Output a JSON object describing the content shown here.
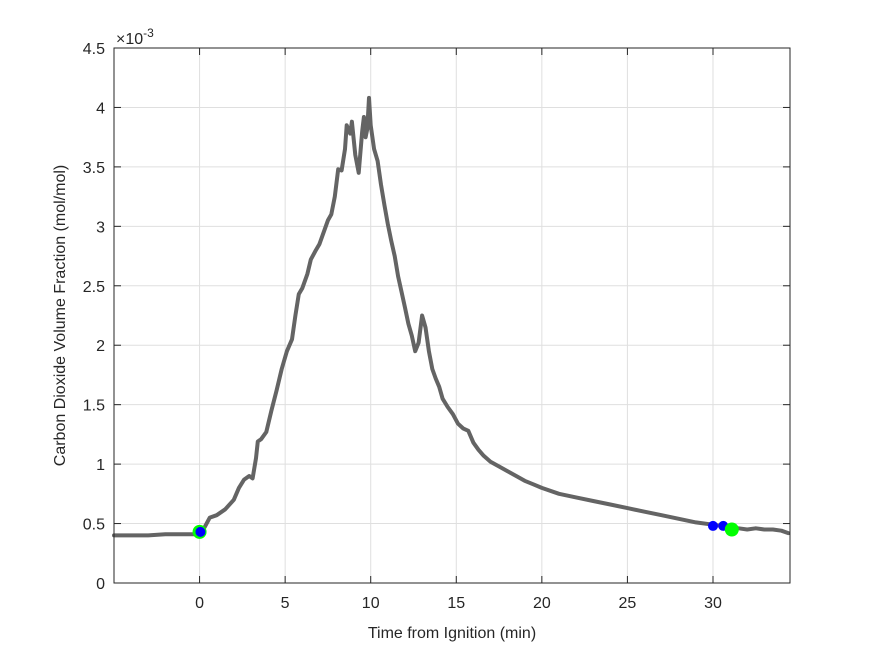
{
  "chart_data": {
    "type": "line",
    "title": "",
    "xlabel": "Time from Ignition (min)",
    "ylabel": "Carbon Dioxide Volume Fraction (mol/mol)",
    "y_exponent_label": "×10",
    "y_exponent_power": "-3",
    "y_scale_factor": 0.001,
    "xlim": [
      -5,
      34.5
    ],
    "ylim": [
      0,
      4.5
    ],
    "xticks": [
      0,
      5,
      10,
      15,
      20,
      25,
      30
    ],
    "xtick_labels": [
      "0",
      "5",
      "10",
      "15",
      "20",
      "25",
      "30"
    ],
    "yticks": [
      0,
      0.5,
      1,
      1.5,
      2,
      2.5,
      3,
      3.5,
      4,
      4.5
    ],
    "ytick_labels": [
      "0",
      "0.5",
      "1",
      "1.5",
      "2",
      "2.5",
      "3",
      "3.5",
      "4",
      "4.5"
    ],
    "grid": true,
    "legend": null,
    "series": [
      {
        "name": "CO2 volume fraction",
        "color": "#646464",
        "marker": "dot",
        "x": [
          -5.0,
          -4.0,
          -3.0,
          -2.0,
          -1.0,
          0.0,
          0.3,
          0.6,
          1.0,
          1.5,
          2.0,
          2.3,
          2.6,
          2.9,
          3.1,
          3.3,
          3.4,
          3.6,
          3.9,
          4.2,
          4.5,
          4.8,
          5.1,
          5.4,
          5.6,
          5.8,
          6.0,
          6.3,
          6.5,
          6.8,
          7.0,
          7.3,
          7.5,
          7.7,
          7.9,
          8.1,
          8.3,
          8.5,
          8.6,
          8.8,
          8.9,
          9.1,
          9.3,
          9.5,
          9.6,
          9.7,
          9.8,
          9.9,
          10.0,
          10.2,
          10.4,
          10.6,
          10.8,
          11.0,
          11.2,
          11.4,
          11.6,
          11.8,
          12.0,
          12.2,
          12.4,
          12.6,
          12.8,
          13.0,
          13.2,
          13.4,
          13.6,
          13.8,
          14.0,
          14.2,
          14.5,
          14.8,
          15.1,
          15.4,
          15.7,
          16.0,
          16.3,
          16.6,
          17.0,
          17.5,
          18.0,
          18.5,
          19.0,
          19.5,
          20.0,
          21.0,
          22.0,
          23.0,
          24.0,
          25.0,
          26.0,
          27.0,
          28.0,
          29.0,
          30.0,
          30.5,
          31.0,
          31.5,
          32.0,
          32.5,
          33.0,
          33.5,
          34.0,
          34.4
        ],
        "y": [
          0.4,
          0.4,
          0.4,
          0.41,
          0.41,
          0.41,
          0.47,
          0.55,
          0.57,
          0.62,
          0.7,
          0.8,
          0.87,
          0.9,
          0.88,
          1.05,
          1.19,
          1.21,
          1.27,
          1.45,
          1.62,
          1.8,
          1.95,
          2.05,
          2.25,
          2.43,
          2.48,
          2.6,
          2.72,
          2.8,
          2.85,
          2.97,
          3.05,
          3.1,
          3.25,
          3.48,
          3.47,
          3.65,
          3.85,
          3.78,
          3.88,
          3.6,
          3.45,
          3.8,
          3.92,
          3.75,
          3.82,
          4.08,
          3.85,
          3.65,
          3.55,
          3.35,
          3.18,
          3.02,
          2.88,
          2.75,
          2.58,
          2.45,
          2.32,
          2.18,
          2.08,
          1.95,
          2.02,
          2.25,
          2.15,
          1.95,
          1.8,
          1.72,
          1.65,
          1.55,
          1.48,
          1.42,
          1.34,
          1.3,
          1.28,
          1.18,
          1.12,
          1.07,
          1.02,
          0.98,
          0.94,
          0.9,
          0.86,
          0.83,
          0.8,
          0.75,
          0.72,
          0.69,
          0.66,
          0.63,
          0.6,
          0.57,
          0.54,
          0.51,
          0.49,
          0.48,
          0.47,
          0.46,
          0.45,
          0.46,
          0.45,
          0.45,
          0.44,
          0.42
        ]
      }
    ],
    "markers": [
      {
        "name": "start-marker-green",
        "x": 0.0,
        "y": 0.43,
        "color": "#00ff00",
        "size": 7
      },
      {
        "name": "start-marker-blue",
        "x": 0.05,
        "y": 0.43,
        "color": "#0000ff",
        "size": 5
      },
      {
        "name": "end-marker-blue-1",
        "x": 30.0,
        "y": 0.48,
        "color": "#0000ff",
        "size": 5
      },
      {
        "name": "end-marker-blue-2",
        "x": 30.6,
        "y": 0.48,
        "color": "#0000ff",
        "size": 5
      },
      {
        "name": "end-marker-green",
        "x": 31.1,
        "y": 0.45,
        "color": "#00ff00",
        "size": 7
      }
    ]
  }
}
